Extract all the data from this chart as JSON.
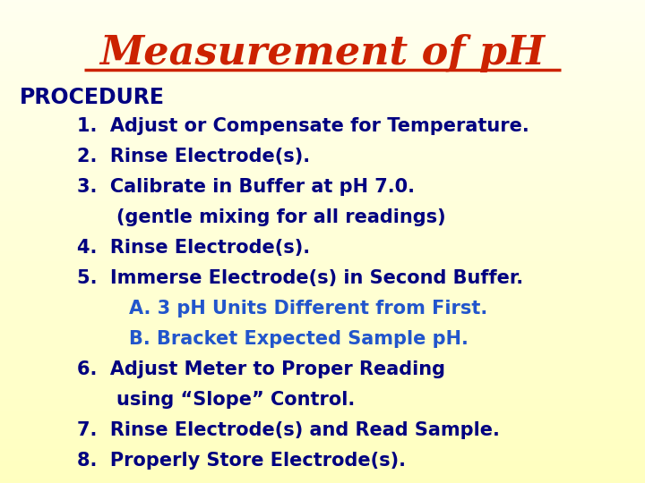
{
  "title_display": "Measurement of pH",
  "title_color": "#cc2200",
  "title_fontsize": 32,
  "bg_color_top": "#fffff0",
  "bg_color_bottom": "#ffffc0",
  "lines": [
    {
      "indent": 0.03,
      "text": "PROCEDURE",
      "color": "#000080",
      "fontsize": 17,
      "bold": true
    },
    {
      "indent": 0.12,
      "text": "1.  Adjust or Compensate for Temperature.",
      "color": "#000080",
      "fontsize": 15,
      "bold": true
    },
    {
      "indent": 0.12,
      "text": "2.  Rinse Electrode(s).",
      "color": "#000080",
      "fontsize": 15,
      "bold": true
    },
    {
      "indent": 0.12,
      "text": "3.  Calibrate in Buffer at pH 7.0.",
      "color": "#000080",
      "fontsize": 15,
      "bold": true
    },
    {
      "indent": 0.18,
      "text": "(gentle mixing for all readings)",
      "color": "#000080",
      "fontsize": 15,
      "bold": true
    },
    {
      "indent": 0.12,
      "text": "4.  Rinse Electrode(s).",
      "color": "#000080",
      "fontsize": 15,
      "bold": true
    },
    {
      "indent": 0.12,
      "text": "5.  Immerse Electrode(s) in Second Buffer.",
      "color": "#000080",
      "fontsize": 15,
      "bold": true
    },
    {
      "indent": 0.2,
      "text": "A. 3 pH Units Different from First.",
      "color": "#2255cc",
      "fontsize": 15,
      "bold": true
    },
    {
      "indent": 0.2,
      "text": "B. Bracket Expected Sample pH.",
      "color": "#2255cc",
      "fontsize": 15,
      "bold": true
    },
    {
      "indent": 0.12,
      "text": "6.  Adjust Meter to Proper Reading",
      "color": "#000080",
      "fontsize": 15,
      "bold": true
    },
    {
      "indent": 0.18,
      "text": "using “Slope” Control.",
      "color": "#000080",
      "fontsize": 15,
      "bold": true
    },
    {
      "indent": 0.12,
      "text": "7.  Rinse Electrode(s) and Read Sample.",
      "color": "#000080",
      "fontsize": 15,
      "bold": true
    },
    {
      "indent": 0.12,
      "text": "8.  Properly Store Electrode(s).",
      "color": "#000080",
      "fontsize": 15,
      "bold": true
    }
  ]
}
